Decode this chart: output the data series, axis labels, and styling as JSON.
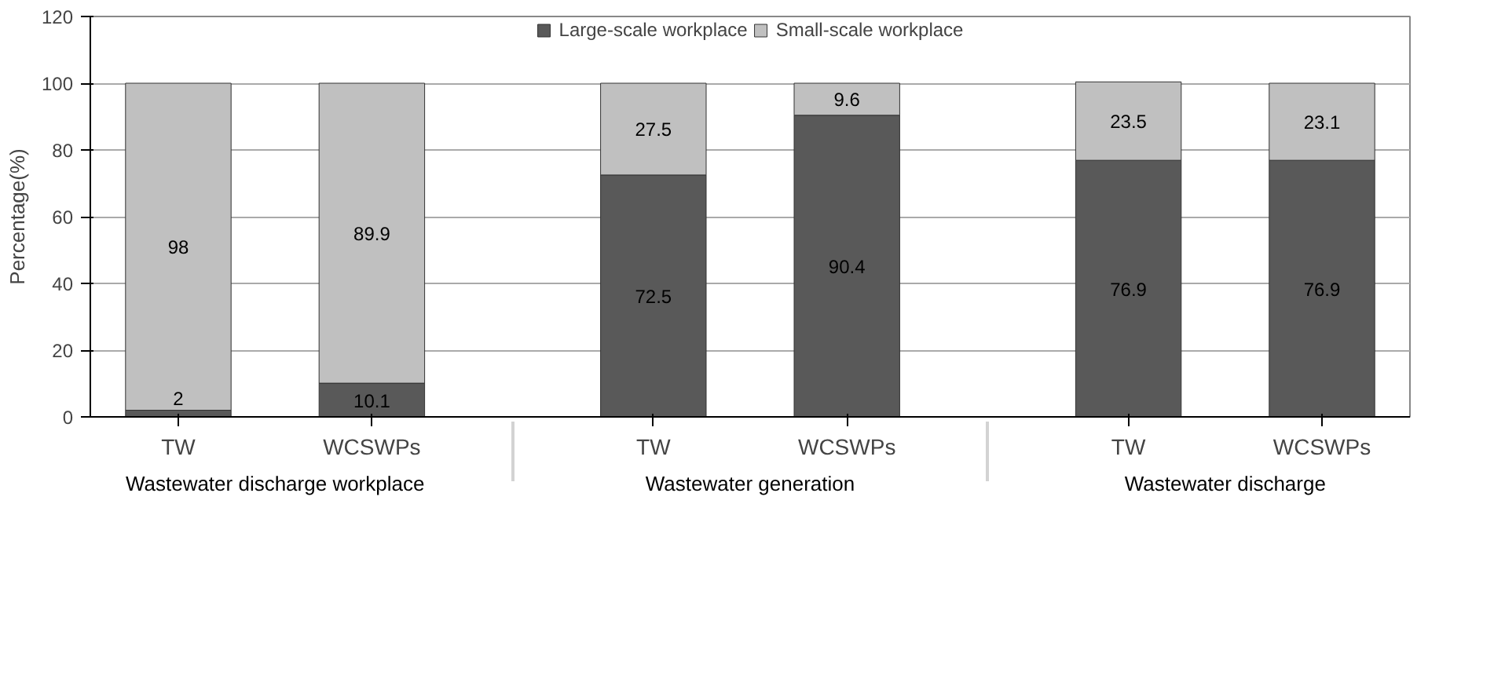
{
  "chart_data": {
    "type": "bar",
    "stacked": true,
    "ylabel": "Percentage(%)",
    "categories": [
      "TW",
      "WCSWPs",
      "TW",
      "WCSWPs",
      "TW",
      "WCSWPs"
    ],
    "annotations": [
      "Wastewater discharge workplace",
      "Wastewater generation",
      "Wastewater discharge"
    ],
    "series": [
      {
        "name": "Large-scale workplace",
        "color": "#595959",
        "values": [
          2,
          10.1,
          72.5,
          90.4,
          76.9,
          76.9
        ]
      },
      {
        "name": "Small-scale workplace",
        "color": "#c0c0c0",
        "values": [
          98,
          89.9,
          27.5,
          9.6,
          23.5,
          23.1
        ]
      }
    ],
    "ylim": [
      0,
      120
    ],
    "yticks": [
      0,
      20,
      40,
      60,
      80,
      100,
      120
    ],
    "grid": "y",
    "legend": "top",
    "data_labels": true
  }
}
